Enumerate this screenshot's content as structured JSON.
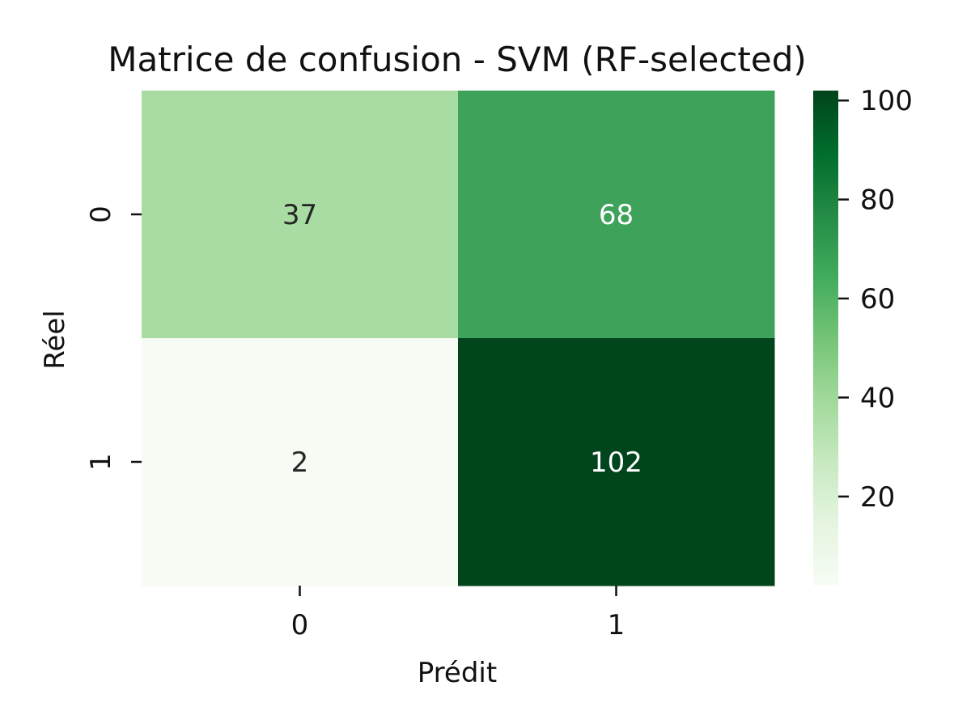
{
  "chart_data": {
    "type": "heatmap",
    "title": "Matrice de confusion - SVM (RF-selected)",
    "xlabel": "Prédit",
    "ylabel": "Réel",
    "x_categories": [
      "0",
      "1"
    ],
    "y_categories": [
      "0",
      "1"
    ],
    "values": [
      [
        37,
        68
      ],
      [
        2,
        102
      ]
    ],
    "colormap": "Greens",
    "colorbar": {
      "range": [
        2,
        102
      ],
      "ticks": [
        20,
        40,
        60,
        80,
        100
      ],
      "tick_labels": [
        "20",
        "40",
        "60",
        "80",
        "100"
      ]
    }
  },
  "colors": {
    "cell_37": "#a9dca3",
    "cell_68": "#3ea25b",
    "cell_2": "#f6fbf4",
    "cell_102": "#00451c",
    "dark_text": "#262626",
    "light_text": "#ffffff"
  }
}
